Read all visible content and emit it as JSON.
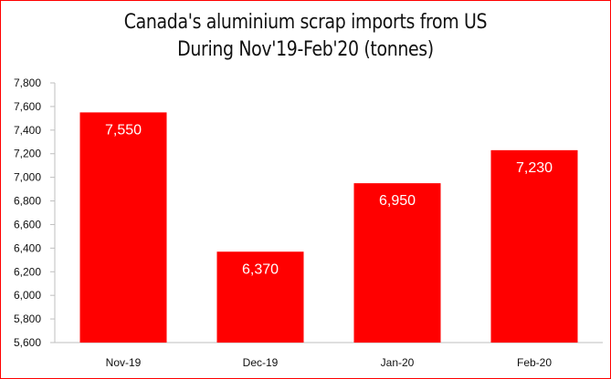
{
  "chart_data": {
    "type": "bar",
    "title_line1": "Canada's aluminium scrap imports from US",
    "title_line2": "During Nov'19-Feb'20 (tonnes)",
    "categories": [
      "Nov-19",
      "Dec-19",
      "Jan-20",
      "Feb-20"
    ],
    "values": [
      7550,
      6370,
      6950,
      7230
    ],
    "data_labels": [
      "7,550",
      "6,370",
      "6,950",
      "7,230"
    ],
    "ylim": [
      5600,
      7800
    ],
    "yticks": [
      5600,
      5800,
      6000,
      6200,
      6400,
      6600,
      6800,
      7000,
      7200,
      7400,
      7600,
      7800
    ],
    "ytick_labels": [
      "5,600",
      "5,800",
      "6,000",
      "6,200",
      "6,400",
      "6,600",
      "6,800",
      "7,000",
      "7,200",
      "7,400",
      "7,600",
      "7,800"
    ],
    "xlabel": "",
    "ylabel": "",
    "grid": false,
    "legend": "none",
    "bar_color": "#ff0000",
    "border_color": "#ff0000"
  }
}
